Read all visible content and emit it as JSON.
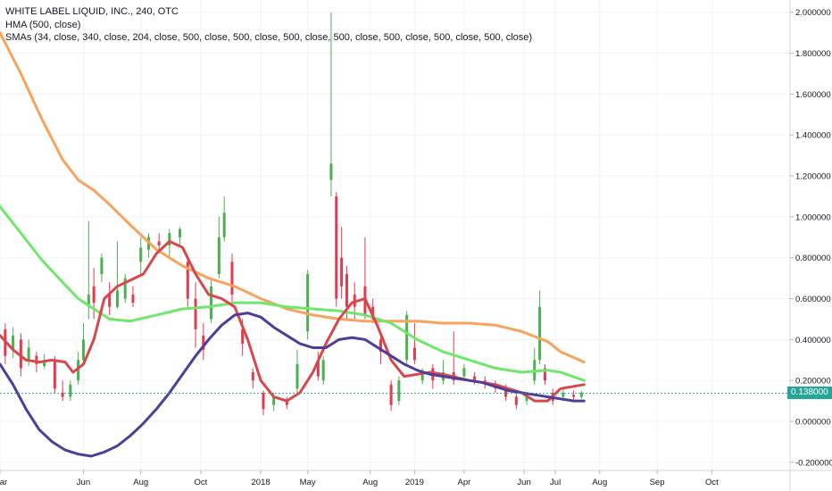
{
  "legend": {
    "title": "WHITE LABEL LIQUID, INC., 240, OTC",
    "hma": "HMA (500, close)",
    "smas": "SMAs (34, close, 340, close, 204, close, 500, close, 500, close, 500, close, 500, close, 500, close, 500, close, 500, close)"
  },
  "colors": {
    "orange": "#f7a35c",
    "green": "#6ee86a",
    "red": "#d8474c",
    "purple": "#4f3d9a",
    "up": "#4caf50",
    "down": "#e53950",
    "last_price": "#26a69a"
  },
  "chart_data": {
    "type": "line",
    "title": "WHITE LABEL LIQUID, INC., 240, OTC",
    "x_ticks": [
      "Mar",
      "Jun",
      "Aug",
      "Oct",
      "2018",
      "May",
      "Aug",
      "2019",
      "Apr",
      "Jun",
      "Jul",
      "Aug",
      "Sep",
      "Oct"
    ],
    "x_tick_pos": [
      0,
      3.2,
      5.4,
      7.7,
      10,
      11.8,
      14.2,
      15.9,
      17.8,
      20.1,
      21.3,
      23.0,
      25.2,
      27.3
    ],
    "y_ticks": [
      "2.000000",
      "1.800000",
      "1.600000",
      "1.400000",
      "1.200000",
      "1.000000",
      "0.800000",
      "0.600000",
      "0.400000",
      "0.200000",
      "0.000000",
      "-0.200000"
    ],
    "ylim": [
      -0.24,
      2.06
    ],
    "xlim": [
      0,
      30.3
    ],
    "last_price": 0.138,
    "last_price_label": "0.138000",
    "series": [
      {
        "color_key": "orange",
        "x": [
          0,
          0.8,
          1.6,
          2.4,
          3.0,
          3.6,
          4.2,
          5.0,
          6.0,
          7.0,
          8.0,
          9.0,
          10.0,
          11.0,
          12.0,
          13.0,
          14.0,
          15.0,
          16.0,
          17.0,
          18.0,
          19.0,
          20.0,
          21.0,
          21.5,
          22.4
        ],
        "y": [
          1.9,
          1.7,
          1.48,
          1.28,
          1.18,
          1.13,
          1.06,
          0.96,
          0.84,
          0.76,
          0.7,
          0.66,
          0.6,
          0.55,
          0.52,
          0.5,
          0.49,
          0.49,
          0.49,
          0.48,
          0.48,
          0.47,
          0.44,
          0.39,
          0.34,
          0.29
        ]
      },
      {
        "color_key": "green",
        "x": [
          0,
          0.8,
          1.6,
          2.4,
          3.0,
          3.6,
          4.2,
          5.0,
          6.0,
          7.0,
          8.0,
          9.0,
          10.0,
          11.0,
          12.0,
          13.0,
          14.0,
          15.0,
          16.0,
          17.0,
          18.0,
          19.0,
          20.0,
          21.0,
          21.5,
          22.4
        ],
        "y": [
          1.05,
          0.92,
          0.79,
          0.68,
          0.6,
          0.55,
          0.5,
          0.49,
          0.52,
          0.55,
          0.56,
          0.58,
          0.58,
          0.56,
          0.55,
          0.54,
          0.52,
          0.48,
          0.4,
          0.34,
          0.3,
          0.26,
          0.24,
          0.25,
          0.24,
          0.2
        ]
      },
      {
        "color_key": "red",
        "x": [
          0,
          0.5,
          1.0,
          1.5,
          2.0,
          2.5,
          2.8,
          3.2,
          3.6,
          4.0,
          4.5,
          5.0,
          5.5,
          6.0,
          6.5,
          7.0,
          7.5,
          8.0,
          8.5,
          9.0,
          9.5,
          10.0,
          10.5,
          11.0,
          11.5,
          12.0,
          12.5,
          13.0,
          13.5,
          14.0,
          14.5,
          15.0,
          15.5,
          16.0,
          16.5,
          17.0,
          18.0,
          19.0,
          20.0,
          20.5,
          21.0,
          21.5,
          22.4
        ],
        "y": [
          0.42,
          0.35,
          0.3,
          0.29,
          0.3,
          0.29,
          0.24,
          0.28,
          0.4,
          0.6,
          0.66,
          0.69,
          0.72,
          0.82,
          0.88,
          0.85,
          0.72,
          0.62,
          0.6,
          0.56,
          0.4,
          0.2,
          0.12,
          0.1,
          0.14,
          0.24,
          0.38,
          0.5,
          0.58,
          0.6,
          0.46,
          0.3,
          0.22,
          0.23,
          0.24,
          0.23,
          0.2,
          0.18,
          0.14,
          0.1,
          0.1,
          0.16,
          0.18
        ]
      },
      {
        "color_key": "purple",
        "x": [
          0,
          0.5,
          1.0,
          1.5,
          2.0,
          2.5,
          3.0,
          3.5,
          4.0,
          4.5,
          5.0,
          5.5,
          6.0,
          6.5,
          7.0,
          7.5,
          8.0,
          8.5,
          9.0,
          9.5,
          10.0,
          10.5,
          11.0,
          11.5,
          12.0,
          12.5,
          13.0,
          13.5,
          14.0,
          14.5,
          15.0,
          15.5,
          16.0,
          16.5,
          17.0,
          17.5,
          18.0,
          18.5,
          19.0,
          19.5,
          20.0,
          20.5,
          21.0,
          21.5,
          22.0,
          22.4
        ],
        "y": [
          0.28,
          0.18,
          0.06,
          -0.04,
          -0.1,
          -0.14,
          -0.16,
          -0.17,
          -0.15,
          -0.12,
          -0.07,
          -0.01,
          0.06,
          0.14,
          0.23,
          0.32,
          0.4,
          0.47,
          0.52,
          0.53,
          0.51,
          0.46,
          0.42,
          0.38,
          0.36,
          0.36,
          0.4,
          0.41,
          0.4,
          0.36,
          0.32,
          0.28,
          0.25,
          0.23,
          0.22,
          0.21,
          0.2,
          0.19,
          0.17,
          0.15,
          0.14,
          0.13,
          0.12,
          0.11,
          0.1,
          0.1
        ]
      }
    ],
    "candles": [
      [
        0.2,
        0.45,
        0.32,
        0.48,
        0.28
      ],
      [
        0.5,
        0.35,
        0.42,
        0.46,
        0.31
      ],
      [
        0.8,
        0.4,
        0.26,
        0.43,
        0.22
      ],
      [
        1.1,
        0.3,
        0.36,
        0.4,
        0.27
      ],
      [
        1.4,
        0.32,
        0.28,
        0.34,
        0.24
      ],
      [
        1.7,
        0.27,
        0.3,
        0.33,
        0.26
      ],
      [
        2.1,
        0.3,
        0.16,
        0.32,
        0.14
      ],
      [
        2.4,
        0.14,
        0.12,
        0.2,
        0.1
      ],
      [
        2.7,
        0.12,
        0.18,
        0.2,
        0.1
      ],
      [
        3.0,
        0.2,
        0.3,
        0.34,
        0.18
      ],
      [
        3.2,
        0.3,
        0.4,
        0.48,
        0.28
      ],
      [
        3.4,
        0.56,
        0.62,
        0.98,
        0.5
      ],
      [
        3.6,
        0.66,
        0.58,
        0.75,
        0.5
      ],
      [
        3.9,
        0.72,
        0.8,
        0.82,
        0.68
      ],
      [
        4.2,
        0.62,
        0.56,
        0.68,
        0.52
      ],
      [
        4.5,
        0.56,
        0.64,
        0.88,
        0.55
      ],
      [
        4.8,
        0.6,
        0.7,
        0.72,
        0.58
      ],
      [
        5.1,
        0.62,
        0.58,
        0.66,
        0.56
      ],
      [
        5.4,
        0.78,
        0.85,
        0.9,
        0.72
      ],
      [
        5.7,
        0.84,
        0.9,
        0.92,
        0.8
      ],
      [
        6.1,
        0.88,
        0.86,
        0.92,
        0.84
      ],
      [
        6.5,
        0.86,
        0.92,
        0.94,
        0.8
      ],
      [
        6.9,
        0.9,
        0.94,
        0.95,
        0.86
      ],
      [
        7.2,
        0.78,
        0.6,
        0.8,
        0.56
      ],
      [
        7.5,
        0.6,
        0.45,
        0.68,
        0.36
      ],
      [
        7.8,
        0.42,
        0.35,
        0.48,
        0.3
      ],
      [
        8.1,
        0.5,
        0.66,
        0.7,
        0.48
      ],
      [
        8.4,
        0.72,
        0.9,
        1.0,
        0.7
      ],
      [
        8.6,
        0.9,
        1.02,
        1.1,
        0.88
      ],
      [
        8.9,
        0.78,
        0.62,
        0.82,
        0.56
      ],
      [
        9.3,
        0.45,
        0.38,
        0.5,
        0.32
      ],
      [
        9.7,
        0.24,
        0.2,
        0.26,
        0.16
      ],
      [
        10.1,
        0.14,
        0.06,
        0.15,
        0.03
      ],
      [
        10.5,
        0.08,
        0.12,
        0.14,
        0.05
      ],
      [
        11.0,
        0.1,
        0.08,
        0.12,
        0.06
      ],
      [
        11.4,
        0.16,
        0.28,
        0.35,
        0.14
      ],
      [
        11.8,
        0.44,
        0.72,
        0.74,
        0.4
      ],
      [
        12.2,
        0.3,
        0.22,
        0.34,
        0.2
      ],
      [
        12.4,
        0.2,
        0.3,
        0.32,
        0.18
      ],
      [
        12.7,
        1.18,
        1.26,
        2.0,
        1.1
      ],
      [
        12.9,
        1.1,
        0.6,
        1.12,
        0.56
      ],
      [
        13.1,
        0.8,
        0.66,
        0.95,
        0.6
      ],
      [
        13.3,
        0.72,
        0.56,
        0.76,
        0.5
      ],
      [
        13.6,
        0.62,
        0.56,
        0.68,
        0.5
      ],
      [
        14.0,
        0.66,
        0.52,
        0.9,
        0.5
      ],
      [
        14.3,
        0.56,
        0.5,
        0.6,
        0.48
      ],
      [
        14.6,
        0.4,
        0.34,
        0.42,
        0.28
      ],
      [
        15.0,
        0.18,
        0.08,
        0.2,
        0.05
      ],
      [
        15.3,
        0.1,
        0.2,
        0.22,
        0.08
      ],
      [
        15.6,
        0.3,
        0.52,
        0.54,
        0.28
      ],
      [
        15.9,
        0.36,
        0.3,
        0.48,
        0.28
      ],
      [
        16.2,
        0.2,
        0.24,
        0.26,
        0.18
      ],
      [
        16.6,
        0.26,
        0.2,
        0.28,
        0.16
      ],
      [
        17.0,
        0.2,
        0.24,
        0.3,
        0.18
      ],
      [
        17.4,
        0.24,
        0.2,
        0.44,
        0.18
      ],
      [
        17.8,
        0.22,
        0.26,
        0.28,
        0.2
      ],
      [
        18.2,
        0.22,
        0.2,
        0.24,
        0.18
      ],
      [
        18.6,
        0.2,
        0.18,
        0.22,
        0.16
      ],
      [
        19.0,
        0.18,
        0.16,
        0.2,
        0.14
      ],
      [
        19.4,
        0.16,
        0.12,
        0.18,
        0.1
      ],
      [
        19.8,
        0.12,
        0.08,
        0.14,
        0.06
      ],
      [
        20.2,
        0.1,
        0.12,
        0.14,
        0.08
      ],
      [
        20.5,
        0.2,
        0.3,
        0.36,
        0.18
      ],
      [
        20.7,
        0.3,
        0.56,
        0.64,
        0.28
      ],
      [
        20.9,
        0.26,
        0.2,
        0.28,
        0.18
      ],
      [
        21.2,
        0.14,
        0.1,
        0.16,
        0.08
      ],
      [
        21.6,
        0.12,
        0.14,
        0.16,
        0.1
      ],
      [
        22.0,
        0.13,
        0.12,
        0.15,
        0.1
      ],
      [
        22.3,
        0.12,
        0.14,
        0.15,
        0.11
      ]
    ]
  }
}
